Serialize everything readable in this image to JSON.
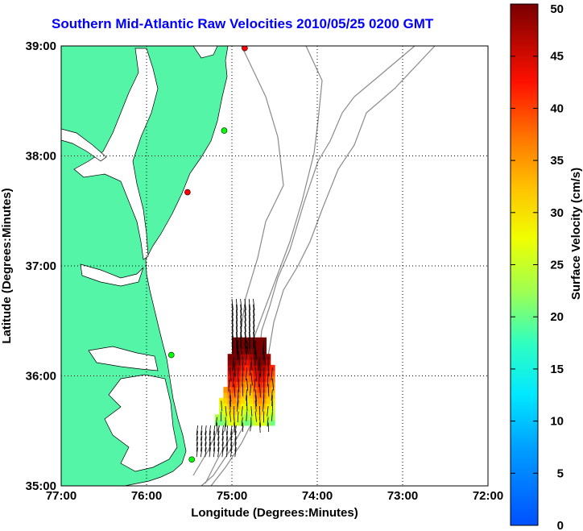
{
  "title": "Southern Mid-Atlantic Raw Velocities 2010/05/25 0200 GMT",
  "map": {
    "xlabel": "Longitude (Degrees:Minutes)",
    "ylabel": "Latitude (Degrees:Minutes)",
    "x_ticks": [
      "77:00",
      "76:00",
      "75:00",
      "74:00",
      "73:00",
      "72:00"
    ],
    "y_ticks": [
      "39:00",
      "38:00",
      "37:00",
      "36:00",
      "35:00"
    ],
    "lon_range": [
      -77,
      -72
    ],
    "lat_range": [
      35,
      39
    ],
    "grid": "dotted",
    "land_color": "#55f5a8",
    "bathymetry_color": "#8a8a8a"
  },
  "colorbar": {
    "label": "Surface Velocity (cm/s)",
    "ticks": [
      "50",
      "45",
      "40",
      "35",
      "30",
      "25",
      "20",
      "15",
      "10",
      "5",
      "0"
    ],
    "range": [
      0,
      50
    ],
    "colormap": "jet"
  },
  "stations": [
    {
      "lon": -74.85,
      "lat": 38.98,
      "color": "#ff0000"
    },
    {
      "lon": -75.09,
      "lat": 38.23,
      "color": "#00ff00"
    },
    {
      "lon": -75.52,
      "lat": 37.67,
      "color": "#ff0000"
    },
    {
      "lon": -75.71,
      "lat": 36.19,
      "color": "#00ff00"
    },
    {
      "lon": -75.47,
      "lat": 35.24,
      "color": "#00ff00"
    }
  ],
  "velocity_field": {
    "lon_range": [
      -75.5,
      -74.5
    ],
    "lat_range": [
      35.6,
      36.3
    ],
    "max_cm_s": 50,
    "min_cm_s": 15
  }
}
